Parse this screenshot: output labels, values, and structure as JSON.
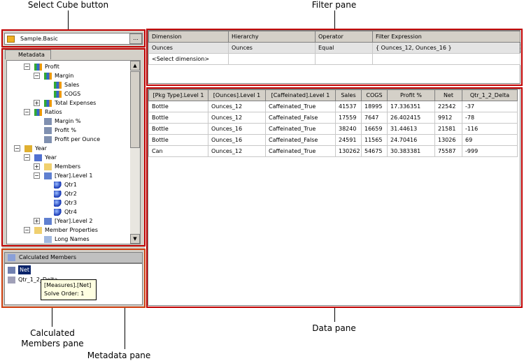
{
  "callouts": {
    "select_cube": "Select Cube button",
    "filter_pane": "Filter pane",
    "calc_members_pane": "Calculated\nMembers pane",
    "metadata_pane": "Metadata pane",
    "data_pane": "Data pane"
  },
  "cube": {
    "name": "Sample.Basic",
    "browse_label": "..."
  },
  "metadata": {
    "tab_label": "Metadata",
    "tree": [
      {
        "label": "Profit",
        "level": 1,
        "expander": "minus",
        "icon": "measure-icon"
      },
      {
        "label": "Margin",
        "level": 2,
        "expander": "minus",
        "icon": "measure-icon"
      },
      {
        "label": "Sales",
        "level": 3,
        "expander": "",
        "icon": "measure-icon"
      },
      {
        "label": "COGS",
        "level": 3,
        "expander": "",
        "icon": "measure-icon"
      },
      {
        "label": "Total Expenses",
        "level": 2,
        "expander": "plus",
        "icon": "measure-icon"
      },
      {
        "label": "Ratios",
        "level": 1,
        "expander": "minus",
        "icon": "measure-icon"
      },
      {
        "label": "Margin %",
        "level": 2,
        "expander": "",
        "icon": "calc-measure-icon"
      },
      {
        "label": "Profit %",
        "level": 2,
        "expander": "",
        "icon": "calc-measure-icon"
      },
      {
        "label": "Profit per Ounce",
        "level": 2,
        "expander": "",
        "icon": "calc-measure-icon"
      },
      {
        "label": "Year",
        "level": 0,
        "expander": "minus",
        "icon": "dimension-icon"
      },
      {
        "label": "Year",
        "level": 1,
        "expander": "minus",
        "icon": "hierarchy-icon"
      },
      {
        "label": "Members",
        "level": 2,
        "expander": "plus",
        "icon": "folder-icon"
      },
      {
        "label": "[Year].Level 1",
        "level": 2,
        "expander": "minus",
        "icon": "level-icon"
      },
      {
        "label": "Qtr1",
        "level": 3,
        "expander": "",
        "icon": "member-icon"
      },
      {
        "label": "Qtr2",
        "level": 3,
        "expander": "",
        "icon": "member-icon"
      },
      {
        "label": "Qtr3",
        "level": 3,
        "expander": "",
        "icon": "member-icon"
      },
      {
        "label": "Qtr4",
        "level": 3,
        "expander": "",
        "icon": "member-icon"
      },
      {
        "label": "[Year].Level 2",
        "level": 2,
        "expander": "plus",
        "icon": "level-icon"
      },
      {
        "label": "Member Properties",
        "level": 1,
        "expander": "minus",
        "icon": "folder-icon"
      },
      {
        "label": "Long Names",
        "level": 2,
        "expander": "",
        "icon": "property-icon"
      }
    ]
  },
  "calculated_members": {
    "title": "Calculated Members",
    "items": [
      "Net",
      "Qtr_1_2_Delta"
    ],
    "selected": "Net",
    "tooltip": {
      "line1": "[Measures].[Net]",
      "line2": "Solve Order: 1"
    }
  },
  "filter": {
    "columns": [
      "Dimension",
      "Hierarchy",
      "Operator",
      "Filter Expression"
    ],
    "rows": [
      [
        "Ounces",
        "Ounces",
        "Equal",
        "{ Ounces_12, Ounces_16 }"
      ],
      [
        "<Select dimension>",
        "",
        "",
        ""
      ]
    ]
  },
  "data": {
    "columns": [
      "[Pkg Type].Level 1",
      "[Ounces].Level 1",
      "[Caffeinated].Level 1",
      "Sales",
      "COGS",
      "Profit %",
      "Net",
      "Qtr_1_2_Delta"
    ],
    "rows": [
      [
        "Bottle",
        "Ounces_12",
        "Caffeinated_True",
        "41537",
        "18995",
        "17.336351",
        "22542",
        "-37"
      ],
      [
        "Bottle",
        "Ounces_12",
        "Caffeinated_False",
        "17559",
        "7647",
        "26.402415",
        "9912",
        "-78"
      ],
      [
        "Bottle",
        "Ounces_16",
        "Caffeinated_True",
        "38240",
        "16659",
        "31.44613",
        "21581",
        "-116"
      ],
      [
        "Bottle",
        "Ounces_16",
        "Caffeinated_False",
        "24591",
        "11565",
        "24.70416",
        "13026",
        "69"
      ],
      [
        "Can",
        "Ounces_12",
        "Caffeinated_True",
        "130262",
        "54675",
        "30.383381",
        "75587",
        "-999"
      ]
    ]
  },
  "colors": {
    "callout_border": "#c00000",
    "selection": "#0a246a",
    "tooltip_bg": "#ffffe1"
  }
}
